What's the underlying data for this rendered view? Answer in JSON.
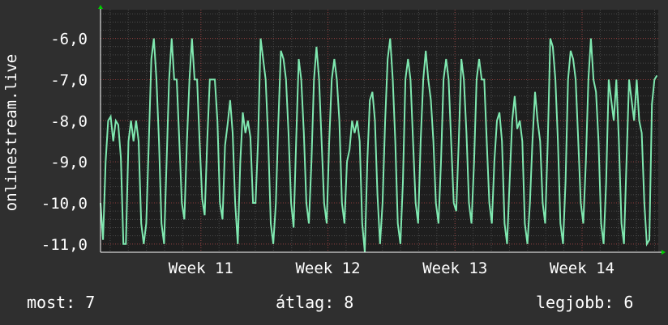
{
  "chart_data": {
    "type": "line",
    "ylabel": "onlinestream.live",
    "y_ticks": [
      {
        "value": -6,
        "label": "-6,0"
      },
      {
        "value": -7,
        "label": "-7,0"
      },
      {
        "value": -8,
        "label": "-8,0"
      },
      {
        "value": -9,
        "label": "-9,0"
      },
      {
        "value": -10,
        "label": "-10,0"
      },
      {
        "value": -11,
        "label": "-11,0"
      }
    ],
    "x_ticks": [
      {
        "value": 11,
        "label": "Week 11"
      },
      {
        "value": 12,
        "label": "Week 12"
      },
      {
        "value": 13,
        "label": "Week 13"
      },
      {
        "value": 14,
        "label": "Week 14"
      }
    ],
    "xlim": [
      10.21,
      14.6
    ],
    "ylim": [
      -11.2,
      -5.3
    ],
    "grid": true,
    "colors": {
      "background": "#2f2f2f",
      "plot_background": "#1e1e1e",
      "grid_major": "#8a3a3a",
      "grid_minor": "#4a4a4a",
      "line": "#7fe8b0",
      "arrow": "#00cc00"
    },
    "series": [
      {
        "color": "#7fe8b0",
        "x": [
          10.21,
          10.23,
          10.25,
          10.27,
          10.29,
          10.31,
          10.33,
          10.35,
          10.37,
          10.39,
          10.41,
          10.43,
          10.45,
          10.47,
          10.49,
          10.51,
          10.53,
          10.55,
          10.57,
          10.59,
          10.61,
          10.63,
          10.65,
          10.67,
          10.69,
          10.71,
          10.73,
          10.75,
          10.77,
          10.79,
          10.81,
          10.83,
          10.85,
          10.87,
          10.89,
          10.91,
          10.93,
          10.95,
          10.97,
          10.99,
          11.01,
          11.03,
          11.05,
          11.07,
          11.09,
          11.11,
          11.13,
          11.15,
          11.17,
          11.19,
          11.21,
          11.23,
          11.25,
          11.27,
          11.29,
          11.31,
          11.33,
          11.35,
          11.37,
          11.39,
          11.41,
          11.43,
          11.45,
          11.47,
          11.49,
          11.51,
          11.53,
          11.55,
          11.57,
          11.59,
          11.61,
          11.63,
          11.65,
          11.67,
          11.69,
          11.71,
          11.73,
          11.75,
          11.77,
          11.79,
          11.81,
          11.83,
          11.85,
          11.87,
          11.89,
          11.91,
          11.93,
          11.95,
          11.97,
          11.99,
          12.01,
          12.03,
          12.05,
          12.07,
          12.09,
          12.11,
          12.13,
          12.15,
          12.17,
          12.19,
          12.21,
          12.23,
          12.25,
          12.27,
          12.29,
          12.31,
          12.33,
          12.35,
          12.37,
          12.39,
          12.41,
          12.43,
          12.45,
          12.47,
          12.49,
          12.51,
          12.53,
          12.55,
          12.57,
          12.59,
          12.61,
          12.63,
          12.65,
          12.67,
          12.69,
          12.71,
          12.73,
          12.75,
          12.77,
          12.79,
          12.81,
          12.83,
          12.85,
          12.87,
          12.89,
          12.91,
          12.93,
          12.95,
          12.97,
          12.99,
          13.01,
          13.03,
          13.05,
          13.07,
          13.09,
          13.11,
          13.13,
          13.15,
          13.17,
          13.19,
          13.21,
          13.23,
          13.25,
          13.27,
          13.29,
          13.31,
          13.33,
          13.35,
          13.37,
          13.39,
          13.41,
          13.43,
          13.45,
          13.47,
          13.49,
          13.51,
          13.53,
          13.55,
          13.57,
          13.59,
          13.61,
          13.63,
          13.65,
          13.67,
          13.69,
          13.71,
          13.73,
          13.75,
          13.77,
          13.79,
          13.81,
          13.83,
          13.85,
          13.87,
          13.89,
          13.91,
          13.93,
          13.95,
          13.97,
          13.99,
          14.01,
          14.03,
          14.05,
          14.07,
          14.09,
          14.11,
          14.13,
          14.15,
          14.17,
          14.19,
          14.21,
          14.23,
          14.25,
          14.27,
          14.29,
          14.31,
          14.33,
          14.35,
          14.37,
          14.39,
          14.41,
          14.43,
          14.45,
          14.47,
          14.49,
          14.51,
          14.53,
          14.55,
          14.57,
          14.59
        ],
        "y": [
          -10.0,
          -10.9,
          -9.0,
          -8.0,
          -7.9,
          -8.5,
          -8.0,
          -8.1,
          -8.9,
          -11.0,
          -11.0,
          -8.5,
          -8.0,
          -8.5,
          -8.0,
          -8.5,
          -10.5,
          -11.0,
          -10.5,
          -8.5,
          -6.5,
          -6.0,
          -7.0,
          -8.5,
          -10.5,
          -11.0,
          -9.0,
          -7.0,
          -6.0,
          -7.0,
          -7.0,
          -8.5,
          -10.0,
          -10.4,
          -8.5,
          -7.0,
          -6.0,
          -7.0,
          -7.0,
          -8.5,
          -9.9,
          -10.3,
          -8.5,
          -7.0,
          -7.0,
          -7.0,
          -8.0,
          -10.0,
          -10.4,
          -8.6,
          -8.1,
          -7.5,
          -8.3,
          -10.0,
          -11.0,
          -9.0,
          -7.8,
          -8.3,
          -8.0,
          -8.4,
          -10.0,
          -10.0,
          -8.5,
          -6.0,
          -6.5,
          -7.0,
          -8.5,
          -10.5,
          -11.0,
          -10.0,
          -8.0,
          -6.3,
          -6.5,
          -7.0,
          -8.3,
          -10.0,
          -10.6,
          -8.5,
          -6.5,
          -7.0,
          -8.3,
          -10.0,
          -10.5,
          -9.0,
          -7.0,
          -6.2,
          -7.0,
          -8.5,
          -10.0,
          -10.5,
          -8.5,
          -7.0,
          -6.5,
          -7.0,
          -8.0,
          -10.0,
          -10.5,
          -9.0,
          -8.7,
          -8.0,
          -8.3,
          -8.0,
          -8.5,
          -10.5,
          -11.2,
          -9.0,
          -7.5,
          -7.3,
          -8.0,
          -9.8,
          -11.0,
          -10.0,
          -8.0,
          -6.5,
          -6.0,
          -7.0,
          -8.5,
          -10.5,
          -11.0,
          -9.5,
          -7.0,
          -6.5,
          -7.0,
          -8.5,
          -10.0,
          -10.5,
          -8.5,
          -7.0,
          -6.3,
          -7.0,
          -7.5,
          -8.5,
          -10.0,
          -10.5,
          -9.0,
          -7.0,
          -6.5,
          -7.0,
          -8.5,
          -10.0,
          -10.2,
          -8.5,
          -6.5,
          -7.0,
          -8.3,
          -10.0,
          -10.5,
          -9.0,
          -7.0,
          -6.5,
          -7.0,
          -7.0,
          -8.5,
          -10.0,
          -10.5,
          -9.0,
          -8.0,
          -7.8,
          -8.5,
          -10.5,
          -11.0,
          -9.5,
          -8.0,
          -7.4,
          -8.2,
          -8.0,
          -8.5,
          -10.5,
          -11.0,
          -10.0,
          -8.5,
          -7.3,
          -8.0,
          -8.5,
          -10.0,
          -10.5,
          -8.5,
          -6.0,
          -6.2,
          -7.0,
          -8.5,
          -10.5,
          -11.0,
          -9.5,
          -7.0,
          -6.3,
          -6.5,
          -7.0,
          -8.5,
          -10.0,
          -10.5,
          -9.0,
          -7.0,
          -6.0,
          -7.0,
          -7.3,
          -8.5,
          -10.5,
          -11.0,
          -9.5,
          -7.0,
          -7.5,
          -8.0,
          -7.0,
          -8.5,
          -10.5,
          -11.0,
          -9.0,
          -7.0,
          -7.5,
          -8.0,
          -7.0,
          -8.0,
          -8.3,
          -10.0,
          -11.0,
          -10.9,
          -7.6,
          -7.0,
          -6.9
        ]
      }
    ]
  },
  "legend": {
    "current_label": "most:",
    "current_value": "7",
    "average_label": "átlag:",
    "average_value": "8",
    "best_label": "legjobb:",
    "best_value": "6"
  }
}
